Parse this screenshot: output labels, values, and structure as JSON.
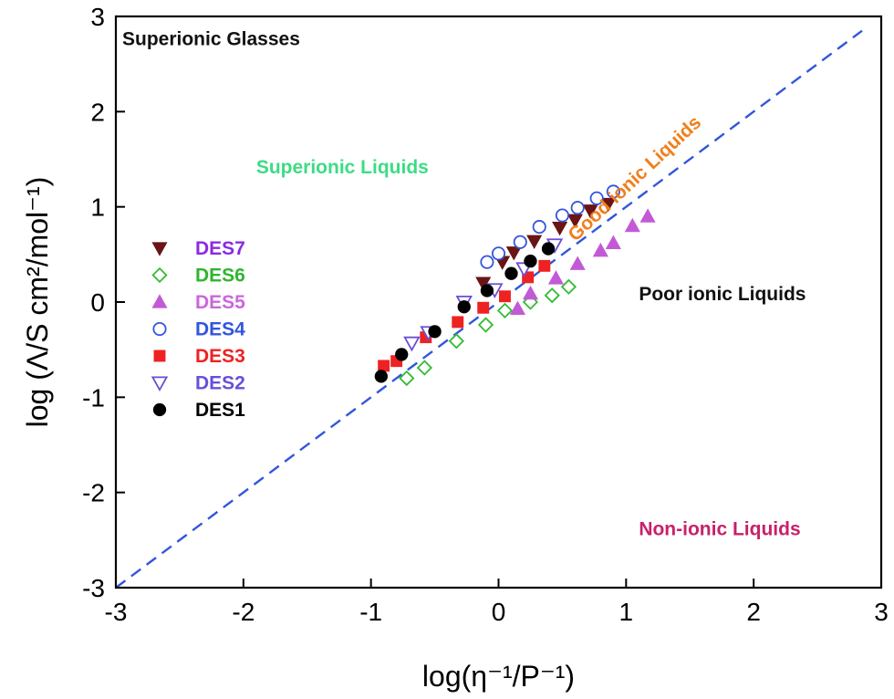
{
  "chart_data": {
    "type": "scatter",
    "title": "",
    "xlabel": "log(η⁻¹/P⁻¹)",
    "ylabel": "log (Λ/S cm²/mol⁻¹)",
    "xlim": [
      -3,
      3
    ],
    "ylim": [
      -3,
      3
    ],
    "x_ticks": [
      "-3",
      "-2",
      "-1",
      "0",
      "1",
      "2",
      "3"
    ],
    "y_ticks": [
      "-3",
      "-2",
      "-1",
      "0",
      "1",
      "2",
      "3"
    ],
    "grid": false,
    "legend_position": "left",
    "reference_line": {
      "style": "dashed",
      "color": "#3355dd",
      "from": [
        -3,
        -3
      ],
      "to": [
        2.85,
        2.85
      ]
    },
    "regions": [
      {
        "text": "Superionic Glasses",
        "x": -2.95,
        "y": 2.7,
        "color": "#111111",
        "rotate": 0
      },
      {
        "text": "Superionic Liquids",
        "x": -1.9,
        "y": 1.35,
        "color": "#3ddc84",
        "rotate": 0
      },
      {
        "text": "Good ionic Liquids",
        "x": 1.1,
        "y": 1.25,
        "color": "#f07f1c",
        "rotate": -43
      },
      {
        "text": "Poor ionic Liquids",
        "x": 1.1,
        "y": 0.02,
        "color": "#111111",
        "rotate": 0
      },
      {
        "text": "Non-ionic Liquids",
        "x": 1.1,
        "y": -2.45,
        "color": "#c8206a",
        "rotate": 0
      }
    ],
    "series": [
      {
        "name": "DES7",
        "marker": "triangle-down",
        "filled": true,
        "color": "#6b1414",
        "label_color": "#8a2be2",
        "points": [
          [
            -0.12,
            0.2
          ],
          [
            0.03,
            0.42
          ],
          [
            0.12,
            0.52
          ],
          [
            0.28,
            0.64
          ],
          [
            0.48,
            0.78
          ],
          [
            0.6,
            0.86
          ],
          [
            0.72,
            0.96
          ],
          [
            0.86,
            1.03
          ]
        ]
      },
      {
        "name": "DES6",
        "marker": "diamond",
        "filled": false,
        "color": "#33bb33",
        "label_color": "#2fb52f",
        "points": [
          [
            -0.72,
            -0.8
          ],
          [
            -0.58,
            -0.69
          ],
          [
            -0.33,
            -0.41
          ],
          [
            -0.1,
            -0.24
          ],
          [
            0.05,
            -0.09
          ],
          [
            0.25,
            0.0
          ],
          [
            0.42,
            0.07
          ],
          [
            0.55,
            0.16
          ]
        ]
      },
      {
        "name": "DES5",
        "marker": "triangle-up",
        "filled": true,
        "color": "#c25ad6",
        "label_color": "#cc66dd",
        "points": [
          [
            0.15,
            -0.07
          ],
          [
            0.25,
            0.09
          ],
          [
            0.45,
            0.25
          ],
          [
            0.62,
            0.4
          ],
          [
            0.8,
            0.54
          ],
          [
            0.9,
            0.62
          ],
          [
            1.05,
            0.8
          ],
          [
            1.17,
            0.9
          ]
        ]
      },
      {
        "name": "DES4",
        "marker": "circle",
        "filled": false,
        "color": "#3355dd",
        "label_color": "#3355dd",
        "points": [
          [
            -0.09,
            0.42
          ],
          [
            0.0,
            0.51
          ],
          [
            0.17,
            0.63
          ],
          [
            0.32,
            0.79
          ],
          [
            0.5,
            0.91
          ],
          [
            0.62,
            0.99
          ],
          [
            0.77,
            1.09
          ],
          [
            0.9,
            1.16
          ]
        ]
      },
      {
        "name": "DES3",
        "marker": "square",
        "filled": true,
        "color": "#ee2222",
        "label_color": "#ee2222",
        "points": [
          [
            -0.9,
            -0.67
          ],
          [
            -0.8,
            -0.62
          ],
          [
            -0.57,
            -0.37
          ],
          [
            -0.32,
            -0.21
          ],
          [
            -0.12,
            -0.06
          ],
          [
            0.05,
            0.06
          ],
          [
            0.23,
            0.26
          ],
          [
            0.36,
            0.38
          ]
        ]
      },
      {
        "name": "DES2",
        "marker": "triangle-down",
        "filled": false,
        "color": "#6a4fd8",
        "label_color": "#6a4fd8",
        "points": [
          [
            -0.68,
            -0.43
          ],
          [
            -0.55,
            -0.32
          ],
          [
            -0.27,
            0.0
          ],
          [
            -0.03,
            0.13
          ],
          [
            0.2,
            0.35
          ],
          [
            0.44,
            0.6
          ]
        ]
      },
      {
        "name": "DES1",
        "marker": "circle",
        "filled": true,
        "color": "#000000",
        "label_color": "#000000",
        "points": [
          [
            -0.92,
            -0.78
          ],
          [
            -0.76,
            -0.55
          ],
          [
            -0.5,
            -0.31
          ],
          [
            -0.27,
            -0.05
          ],
          [
            -0.09,
            0.12
          ],
          [
            0.1,
            0.3
          ],
          [
            0.25,
            0.43
          ],
          [
            0.39,
            0.56
          ]
        ]
      }
    ]
  }
}
